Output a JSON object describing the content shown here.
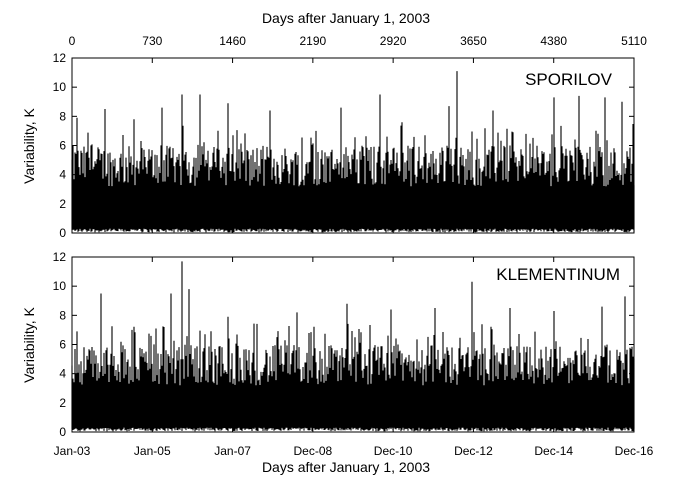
{
  "chart_data": {
    "type": "line",
    "top_axis": {
      "label": "Days after January 1, 2003",
      "ticks": [
        "0",
        "730",
        "1460",
        "2190",
        "2920",
        "3650",
        "4380",
        "5110"
      ],
      "tick_values": [
        0,
        730,
        1460,
        2190,
        2920,
        3650,
        4380,
        5110
      ]
    },
    "bottom_axis": {
      "label": "Days after January 1, 2003",
      "ticks": [
        "Jan-03",
        "Jan-05",
        "Jan-07",
        "Dec-08",
        "Dec-10",
        "Dec-12",
        "Dec-14",
        "Dec-16"
      ],
      "tick_values": [
        0,
        730,
        1460,
        2190,
        2920,
        3650,
        4380,
        5110
      ]
    },
    "xlim": [
      0,
      5110
    ],
    "grid": false,
    "panels": [
      {
        "name": "SPORILOV",
        "ylabel": "Variability, K",
        "ylim": [
          0,
          12
        ],
        "yticks": [
          "0",
          "2",
          "4",
          "6",
          "8",
          "10",
          "12"
        ],
        "approx_peaks": [
          {
            "x": 45,
            "y": 7.9
          },
          {
            "x": 300,
            "y": 8.5
          },
          {
            "x": 560,
            "y": 7.8
          },
          {
            "x": 820,
            "y": 8.6
          },
          {
            "x": 1000,
            "y": 9.5
          },
          {
            "x": 1160,
            "y": 9.5
          },
          {
            "x": 1420,
            "y": 8.9
          },
          {
            "x": 1800,
            "y": 8.4
          },
          {
            "x": 2220,
            "y": 7.0
          },
          {
            "x": 2450,
            "y": 8.6
          },
          {
            "x": 2800,
            "y": 9.5
          },
          {
            "x": 3000,
            "y": 7.6
          },
          {
            "x": 3430,
            "y": 8.7
          },
          {
            "x": 3500,
            "y": 11.1
          },
          {
            "x": 3830,
            "y": 8.4
          },
          {
            "x": 4380,
            "y": 9.3
          },
          {
            "x": 4610,
            "y": 9.4
          },
          {
            "x": 4850,
            "y": 9.3
          },
          {
            "x": 5000,
            "y": 9.0
          }
        ]
      },
      {
        "name": "KLEMENTINUM",
        "ylabel": "Variability, K",
        "ylim": [
          0,
          12
        ],
        "yticks": [
          "0",
          "2",
          "4",
          "6",
          "8",
          "10",
          "12"
        ],
        "approx_peaks": [
          {
            "x": 45,
            "y": 6.9
          },
          {
            "x": 260,
            "y": 9.5
          },
          {
            "x": 550,
            "y": 7.0
          },
          {
            "x": 760,
            "y": 7.1
          },
          {
            "x": 900,
            "y": 9.5
          },
          {
            "x": 1000,
            "y": 11.7
          },
          {
            "x": 1060,
            "y": 9.8
          },
          {
            "x": 1420,
            "y": 7.9
          },
          {
            "x": 2050,
            "y": 8.2
          },
          {
            "x": 2500,
            "y": 8.8
          },
          {
            "x": 2900,
            "y": 8.4
          },
          {
            "x": 3300,
            "y": 8.5
          },
          {
            "x": 3640,
            "y": 10.3
          },
          {
            "x": 3980,
            "y": 8.5
          },
          {
            "x": 4380,
            "y": 8.3
          },
          {
            "x": 4820,
            "y": 8.6
          },
          {
            "x": 5030,
            "y": 9.3
          }
        ]
      }
    ]
  }
}
